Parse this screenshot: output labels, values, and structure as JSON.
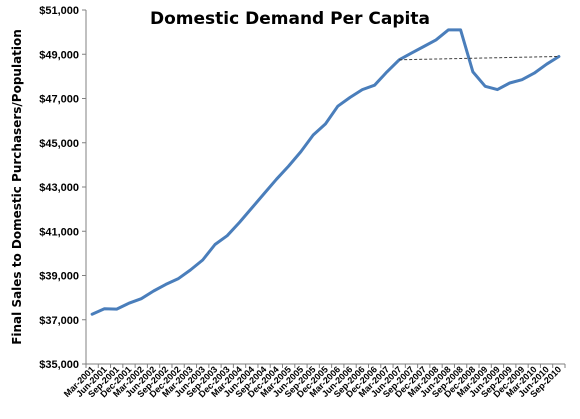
{
  "chart_data": {
    "type": "line",
    "title": "Domestic Demand Per Capita",
    "xlabel": "",
    "ylabel": "Final Sales to Domestic Purchasers/Population",
    "ylim": [
      35000,
      51000
    ],
    "ytick_labels": [
      "$35,000",
      "$37,000",
      "$39,000",
      "$41,000",
      "$43,000",
      "$45,000",
      "$47,000",
      "$49,000",
      "$51,000"
    ],
    "ytick_values": [
      35000,
      37000,
      39000,
      41000,
      43000,
      45000,
      47000,
      49000,
      51000
    ],
    "grid": false,
    "legend": "none",
    "x_tick_labels": [
      "Mar-2001",
      "Jun-2001",
      "Sep-2001",
      "Dec-2001",
      "Mar-2002",
      "Jun-2002",
      "Sep-2002",
      "Dec-2002",
      "Mar-2003",
      "Jun-2003",
      "Sep-2003",
      "Dec-2003",
      "Mar-2004",
      "Jun-2004",
      "Sep-2004",
      "Dec-2004",
      "Mar-2005",
      "Jun-2005",
      "Sep-2005",
      "Dec-2005",
      "Mar-2006",
      "Jun-2006",
      "Sep-2006",
      "Dec-2006",
      "Mar-2007",
      "Jun-2007",
      "Sep-2007",
      "Dec-2007",
      "Mar-2008",
      "Jun-2008",
      "Sep-2008",
      "Dec-2008",
      "Mar-2009",
      "Jun-2009",
      "Sep-2009",
      "Dec-2009",
      "Mar-2010",
      "Jun-2010",
      "Sep-2010"
    ],
    "series": [
      {
        "color": "#4a7ebb",
        "style": "solid",
        "values": [
          37250,
          37500,
          37480,
          37750,
          37950,
          38300,
          38600,
          38850,
          39250,
          39700,
          40400,
          40800,
          41400,
          42050,
          42700,
          43350,
          43950,
          44600,
          45350,
          45850,
          46650,
          47050,
          47400,
          47600,
          48200,
          48750,
          49050,
          49350,
          49650,
          50100,
          50100,
          48200,
          47550,
          47400,
          47700,
          47850,
          48150,
          48550,
          48900
        ]
      },
      {
        "color": "#404040",
        "style": "dashed",
        "x": [
          "Jun-2007",
          "Sep-2010"
        ],
        "values": [
          48750,
          48900
        ]
      }
    ],
    "colors": {
      "axis": "#808080",
      "line": "#4a7ebb",
      "trend": "#404040"
    }
  }
}
